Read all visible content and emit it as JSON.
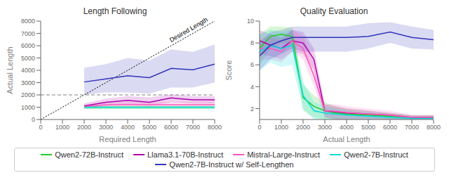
{
  "chart_data": [
    {
      "type": "line",
      "title": "Length Following",
      "x_label": "Required Length",
      "y_label": "Actual Length",
      "xlim": [
        0,
        8000
      ],
      "ylim": [
        0,
        8000
      ],
      "xticks": [
        0,
        1000,
        2000,
        3000,
        4000,
        5000,
        6000,
        7000,
        8000
      ],
      "yticks": [
        0,
        1000,
        2000,
        3000,
        4000,
        5000,
        6000,
        7000,
        8000
      ],
      "grid": false,
      "legend": "bottom",
      "x": [
        2000,
        3000,
        4000,
        5000,
        6000,
        7000,
        8000
      ],
      "reference_lines": [
        {
          "x": [
            0,
            8000
          ],
          "y": [
            0,
            8000
          ],
          "color": "#000000",
          "line_style": "dotted"
        },
        {
          "y": 2000,
          "color": "#808080",
          "line_style": "dashed"
        }
      ],
      "annotations": [
        {
          "text": "Desired Length",
          "x": 6800,
          "y": 7300
        }
      ],
      "series": [
        {
          "name": "Qwen2-72B-Instruct",
          "color": "#22cc22",
          "values": [
            1000,
            1000,
            1000,
            1000,
            1000,
            1000,
            1000
          ],
          "low": [
            850,
            850,
            850,
            850,
            850,
            850,
            850
          ],
          "high": [
            1100,
            1100,
            1100,
            1100,
            1100,
            1100,
            1100
          ]
        },
        {
          "name": "Llama3.1-70B-Instruct",
          "color": "#aa00aa",
          "values": [
            1100,
            1400,
            1550,
            1400,
            1750,
            1600,
            1600
          ],
          "low": [
            950,
            1100,
            1200,
            1100,
            1400,
            1300,
            1300
          ],
          "high": [
            1300,
            1700,
            1900,
            1800,
            2050,
            1900,
            1900
          ]
        },
        {
          "name": "Mistral-Large-Instruct",
          "color": "#ff55bb",
          "values": [
            1050,
            1200,
            1200,
            1200,
            1200,
            1200,
            1200
          ],
          "low": [
            900,
            1000,
            1000,
            1000,
            1000,
            1000,
            1000
          ],
          "high": [
            1200,
            1450,
            1450,
            1450,
            1450,
            1450,
            1450
          ]
        },
        {
          "name": "Qwen2-7B-Instruct",
          "color": "#00dddd",
          "values": [
            1000,
            1000,
            1000,
            1000,
            1000,
            1000,
            1000
          ],
          "low": [
            850,
            850,
            850,
            850,
            850,
            850,
            850
          ],
          "high": [
            1050,
            1050,
            1050,
            1050,
            1050,
            1050,
            1050
          ]
        },
        {
          "name": "Qwen2-7B-Instruct w/ Self-Lengthen",
          "color": "#3333bb",
          "values": [
            3050,
            3300,
            3550,
            3400,
            4150,
            4050,
            4500
          ],
          "low": [
            2000,
            2200,
            2200,
            2100,
            2600,
            2600,
            3000
          ],
          "high": [
            4200,
            4500,
            5000,
            4800,
            5700,
            5500,
            6100
          ]
        }
      ]
    },
    {
      "type": "line",
      "title": "Quality Evaluation",
      "x_label": "Actual Length",
      "y_label": "Score",
      "xlim": [
        0,
        8000
      ],
      "ylim": [
        1,
        10
      ],
      "xticks": [
        0,
        1000,
        2000,
        3000,
        4000,
        5000,
        6000,
        7000,
        8000
      ],
      "yticks": [
        2,
        4,
        6,
        8,
        10
      ],
      "grid": false,
      "x": [
        0,
        500,
        1000,
        1500,
        2000,
        2500,
        3000,
        3500,
        4000,
        5000,
        6000,
        7000,
        8000
      ],
      "series": [
        {
          "name": "Qwen2-72B-Instruct",
          "color": "#22cc22",
          "values": [
            7.5,
            8.6,
            8.8,
            8.6,
            3.0,
            2.2,
            1.8,
            1.6,
            1.5,
            1.4,
            1.3,
            1.2,
            1.2
          ],
          "low": [
            6.0,
            7.5,
            8.0,
            7.8,
            1.8,
            1.2,
            1.0,
            1.0,
            1.0,
            1.0,
            1.0,
            1.0,
            1.0
          ],
          "high": [
            8.8,
            9.5,
            9.5,
            9.4,
            4.2,
            3.2,
            2.6,
            2.2,
            2.0,
            1.8,
            1.6,
            1.4,
            1.4
          ]
        },
        {
          "name": "Llama3.1-70B-Instruct",
          "color": "#aa00aa",
          "values": [
            8.2,
            7.8,
            7.5,
            8.2,
            8.0,
            6.5,
            1.8,
            1.7,
            1.6,
            1.5,
            1.4,
            1.2,
            1.2
          ],
          "low": [
            7.0,
            6.8,
            6.5,
            7.2,
            7.0,
            5.5,
            1.2,
            1.0,
            1.0,
            1.0,
            1.0,
            1.0,
            1.0
          ],
          "high": [
            9.2,
            8.8,
            8.5,
            9.2,
            9.0,
            7.5,
            2.4,
            2.2,
            2.0,
            1.8,
            1.6,
            1.4,
            1.4
          ]
        },
        {
          "name": "Mistral-Large-Instruct",
          "color": "#ff55bb",
          "values": [
            7.5,
            7.5,
            7.2,
            8.2,
            7.5,
            5.0,
            1.8,
            1.75,
            1.65,
            1.5,
            1.4,
            1.2,
            1.2
          ],
          "low": [
            6.5,
            6.5,
            6.2,
            7.2,
            6.5,
            4.0,
            1.2,
            1.0,
            1.0,
            1.0,
            1.0,
            1.0,
            1.0
          ],
          "high": [
            8.5,
            8.5,
            8.2,
            9.2,
            8.6,
            6.5,
            2.4,
            2.4,
            2.2,
            2.0,
            1.8,
            1.4,
            1.4
          ]
        },
        {
          "name": "Qwen2-7B-Instruct",
          "color": "#00dddd",
          "values": [
            7.2,
            7.8,
            7.5,
            7.8,
            3.2,
            1.8,
            1.6,
            1.5,
            1.4,
            1.3,
            1.2,
            1.1,
            1.1
          ],
          "low": [
            5.5,
            6.2,
            5.8,
            6.0,
            2.0,
            1.0,
            1.0,
            1.0,
            1.0,
            1.0,
            1.0,
            1.0,
            1.0
          ],
          "high": [
            8.8,
            9.2,
            9.0,
            9.2,
            4.5,
            2.6,
            2.2,
            2.0,
            1.8,
            1.6,
            1.4,
            1.2,
            1.2
          ]
        },
        {
          "name": "Qwen2-7B-Instruct w/ Self-Lengthen",
          "color": "#3333bb",
          "values": [
            6.8,
            7.8,
            8.2,
            8.5,
            8.5,
            8.5,
            8.5,
            8.5,
            8.5,
            8.6,
            9.0,
            8.5,
            8.3
          ],
          "low": [
            5.5,
            6.5,
            7.0,
            7.5,
            7.2,
            7.2,
            7.2,
            7.2,
            7.2,
            7.5,
            8.0,
            7.5,
            7.4
          ],
          "high": [
            8.0,
            9.0,
            9.2,
            9.5,
            9.5,
            9.5,
            9.5,
            9.5,
            9.5,
            9.8,
            9.9,
            9.5,
            9.2
          ]
        }
      ]
    }
  ]
}
